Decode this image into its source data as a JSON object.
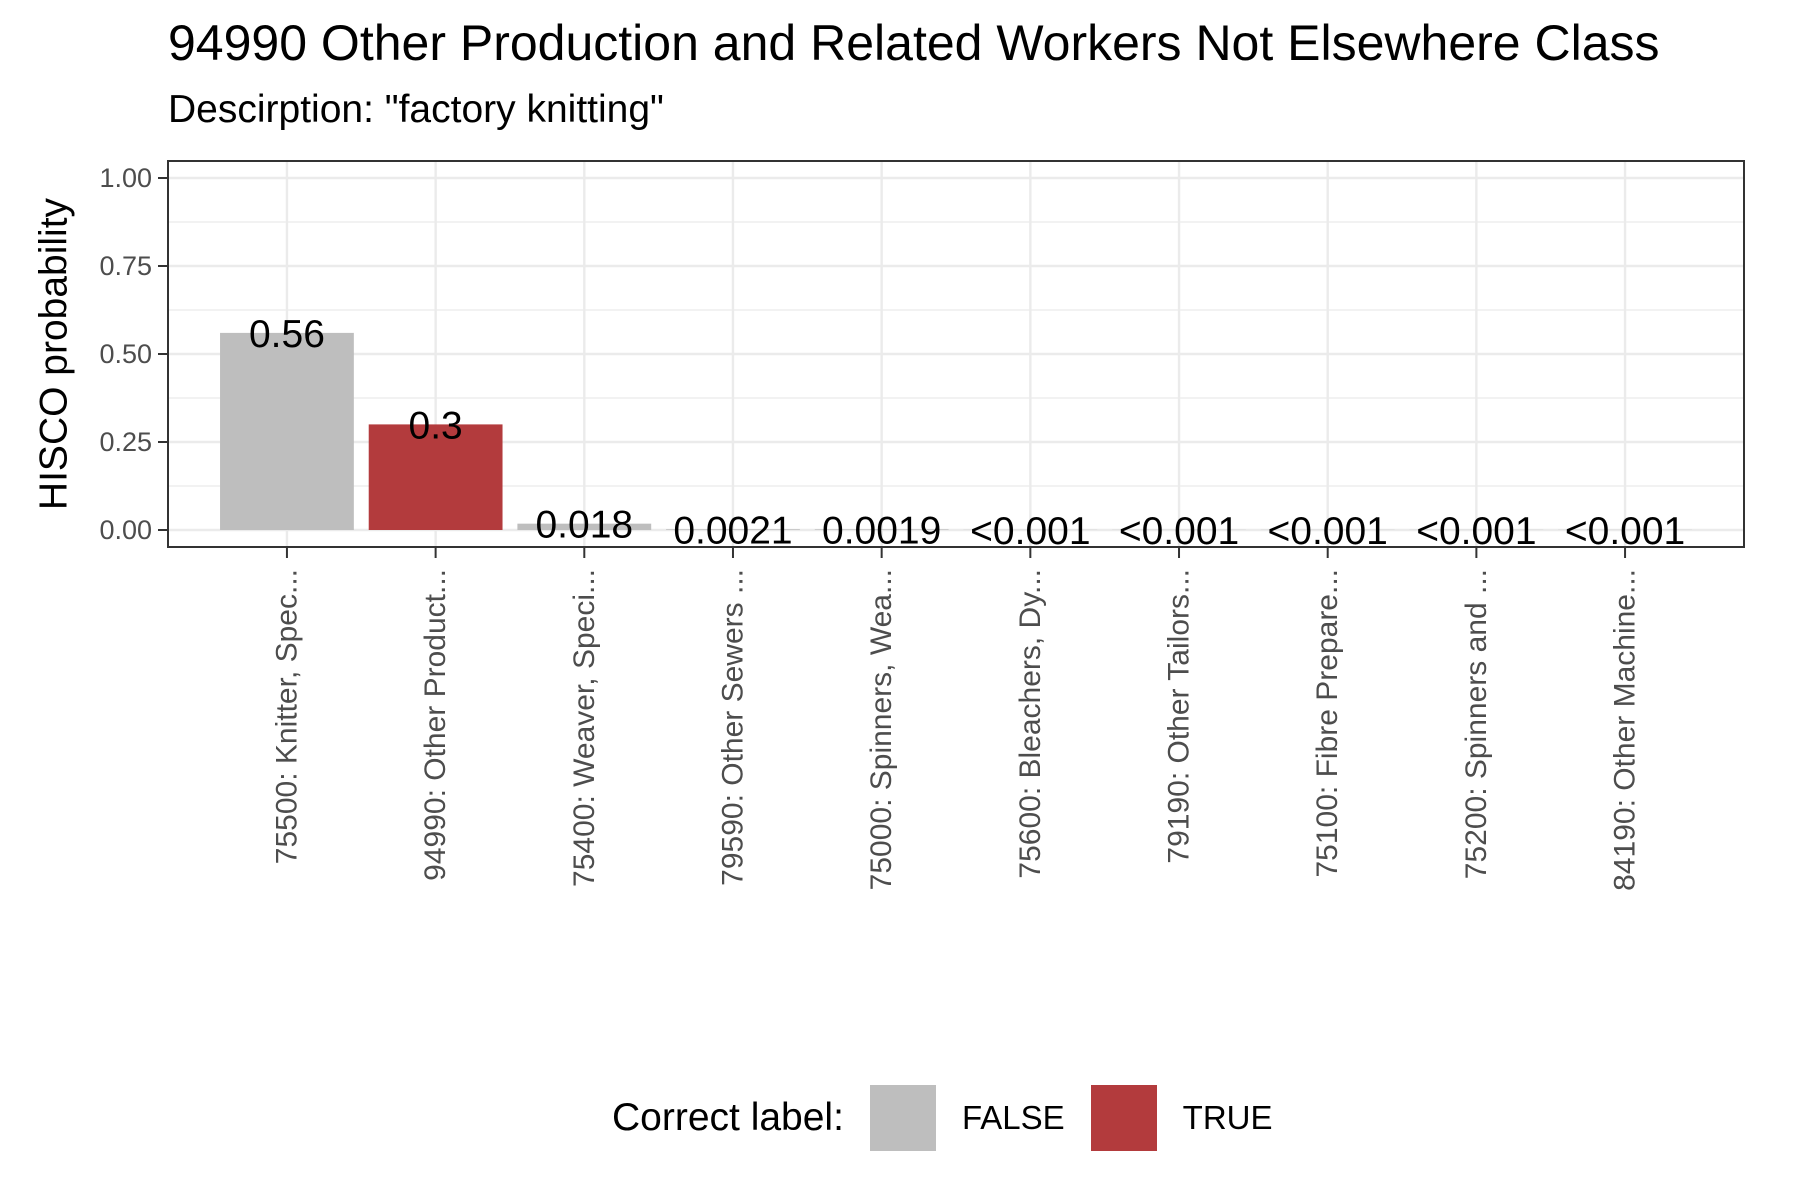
{
  "chart_data": {
    "type": "bar",
    "title": "94990 Other Production and Related Workers Not Elsewhere Class",
    "subtitle": "Descirption: \"factory knitting\"",
    "ylabel": "HISCO probability",
    "xlabel": "",
    "ylim": [
      0,
      1
    ],
    "yticks": [
      "0.00",
      "0.25",
      "0.50",
      "0.75",
      "1.00"
    ],
    "grid": true,
    "legend_position": "bottom",
    "categories": [
      "75500: Knitter, Spec...",
      "94990: Other Product...",
      "75400: Weaver, Speci...",
      "79590: Other Sewers ...",
      "75000: Spinners, Wea...",
      "75600: Bleachers, Dy...",
      "79190: Other Tailors...",
      "75100: Fibre Prepare...",
      "75200: Spinners and ...",
      "84190: Other Machine..."
    ],
    "values": [
      0.56,
      0.3,
      0.018,
      0.0021,
      0.0019,
      0.0005,
      0.0005,
      0.0005,
      0.0005,
      0.0005
    ],
    "value_labels": [
      "0.56",
      "0.3",
      "0.018",
      "0.0021",
      "0.0019",
      "<0.001",
      "<0.001",
      "<0.001",
      "<0.001",
      "<0.001"
    ],
    "correct": [
      false,
      true,
      false,
      false,
      false,
      false,
      false,
      false,
      false,
      false
    ],
    "legend": {
      "title": "Correct label:",
      "entries": [
        {
          "label": "FALSE",
          "color": "#bebebe"
        },
        {
          "label": "TRUE",
          "color": "#b33b3d"
        }
      ]
    }
  }
}
